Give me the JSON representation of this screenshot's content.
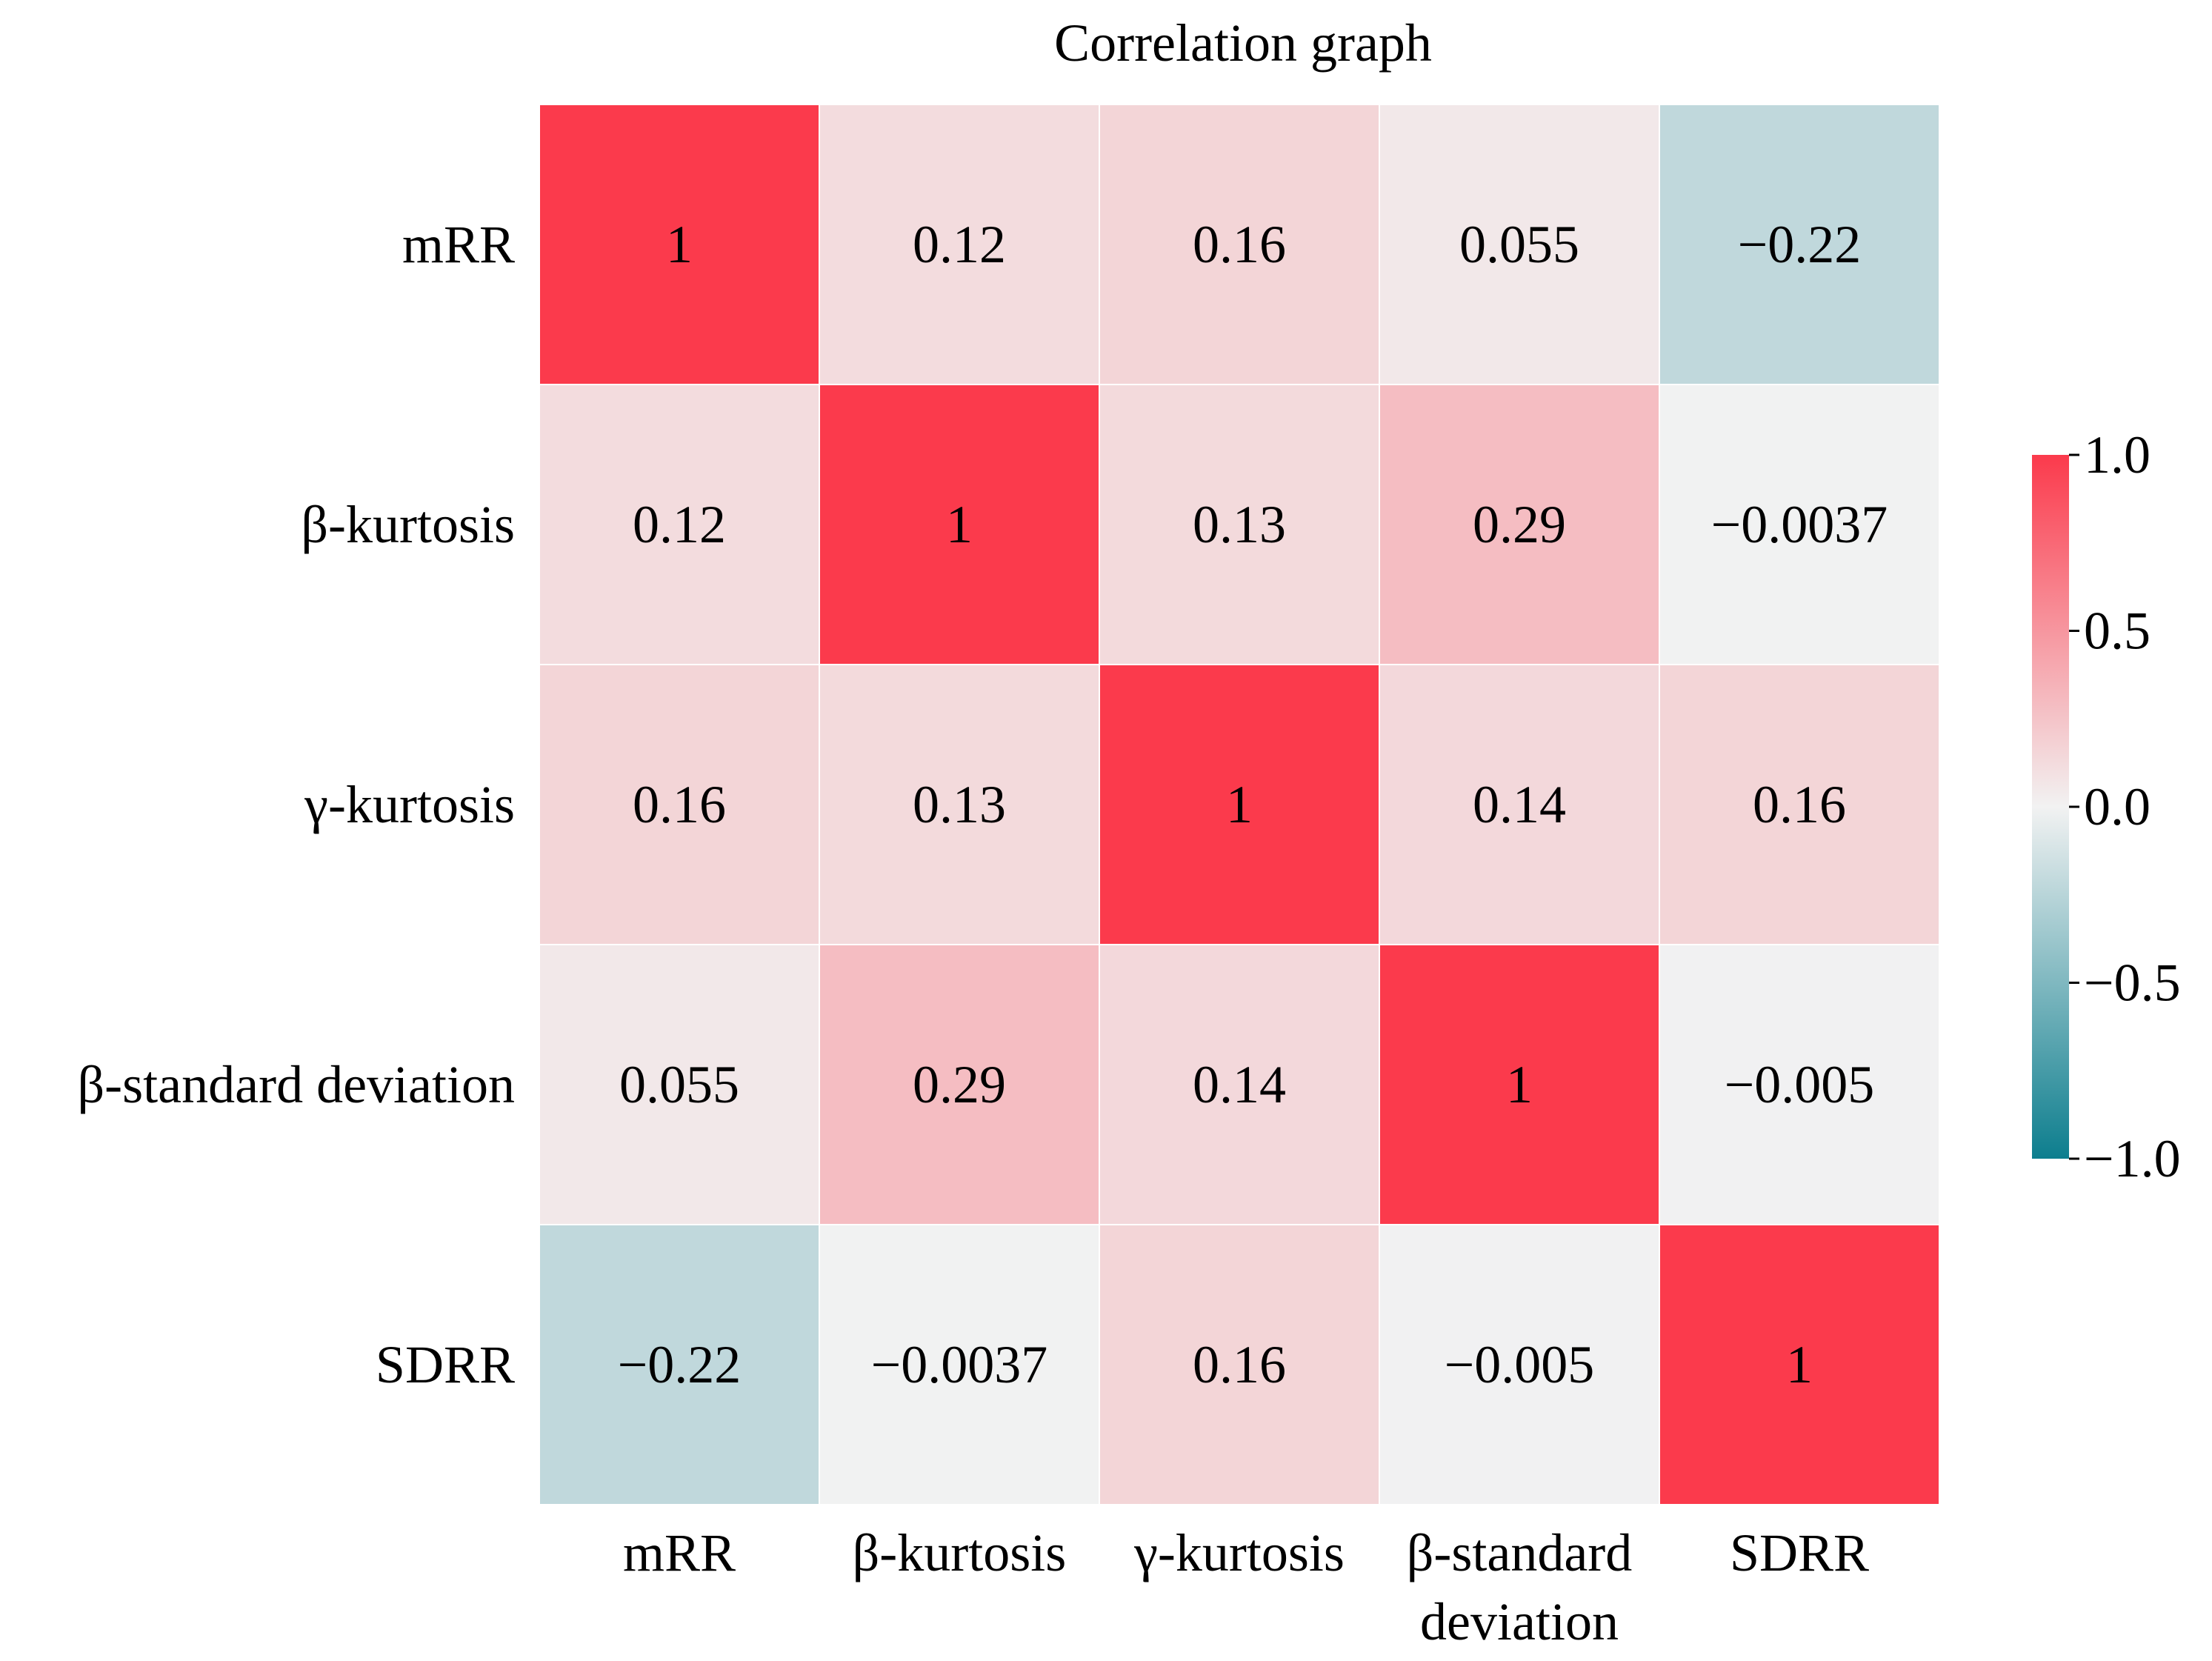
{
  "chart_data": {
    "type": "heatmap",
    "title": "Correlation graph",
    "xlabel": "",
    "ylabel": "",
    "row_labels": [
      "mRR",
      "β-kurtosis",
      "γ-kurtosis",
      "β-standard deviation",
      "SDRR"
    ],
    "col_labels": [
      [
        "mRR"
      ],
      [
        "β-kurtosis"
      ],
      [
        "γ-kurtosis"
      ],
      [
        "β-standard",
        "deviation"
      ],
      [
        "SDRR"
      ]
    ],
    "values": [
      [
        1,
        0.12,
        0.16,
        0.055,
        -0.22
      ],
      [
        0.12,
        1,
        0.13,
        0.29,
        -0.0037
      ],
      [
        0.16,
        0.13,
        1,
        0.14,
        0.16
      ],
      [
        0.055,
        0.29,
        0.14,
        1,
        -0.005
      ],
      [
        -0.22,
        -0.0037,
        0.16,
        -0.005,
        1
      ]
    ],
    "annotations": [
      [
        "1",
        "0.12",
        "0.16",
        "0.055",
        "−0.22"
      ],
      [
        "0.12",
        "1",
        "0.13",
        "0.29",
        "−0.0037"
      ],
      [
        "0.16",
        "0.13",
        "1",
        "0.14",
        "0.16"
      ],
      [
        "0.055",
        "0.29",
        "0.14",
        "1",
        "−0.005"
      ],
      [
        "−0.22",
        "−0.0037",
        "0.16",
        "−0.005",
        "1"
      ]
    ],
    "colorbar": {
      "range": [
        -1.0,
        1.0
      ],
      "ticks": [
        1.0,
        0.5,
        0.0,
        -0.5,
        -1.0
      ],
      "tick_labels": [
        "1.0",
        "0.5",
        "0.0",
        "−0.5",
        "−1.0"
      ],
      "colors": {
        "negative": "#0d7e8e",
        "center": "#f2f2f2",
        "positive": "#fb3a4c"
      }
    }
  }
}
